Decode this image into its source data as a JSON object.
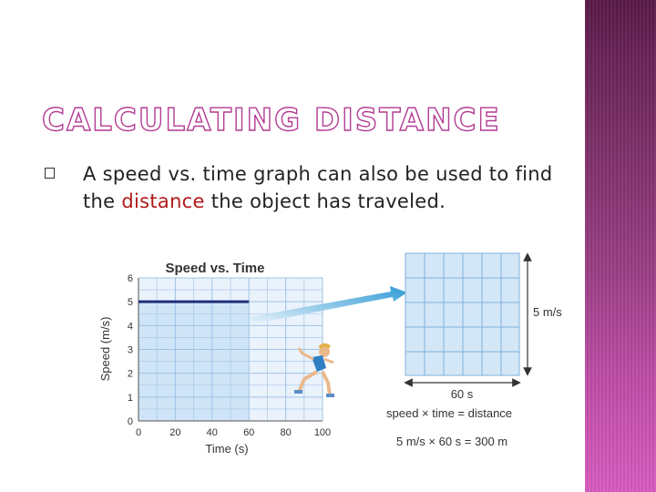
{
  "slide": {
    "title": "CALCULATING DISTANCE",
    "bullet": {
      "text_before": "A speed vs. time graph can also be used to find the",
      "highlight": "distance",
      "text_after": "the object has traveled."
    },
    "colors": {
      "title_outline": "#b23b93",
      "highlight": "#b21a1a",
      "band": "#7b2f67"
    }
  },
  "figure": {
    "chart_data": {
      "type": "line",
      "title": "Speed vs. Time",
      "xlabel": "Time (s)",
      "ylabel": "Speed (m/s)",
      "xlim": [
        0,
        100
      ],
      "ylim": [
        0,
        6
      ],
      "x_ticks": [
        "0",
        "20",
        "40",
        "60",
        "80",
        "100"
      ],
      "y_ticks": [
        "0",
        "1",
        "2",
        "3",
        "4",
        "5",
        "6"
      ],
      "series": [
        {
          "x": [
            0,
            60
          ],
          "y": [
            5,
            5
          ]
        }
      ],
      "shaded_region": {
        "x": [
          0,
          60
        ],
        "y": [
          0,
          5
        ]
      }
    },
    "callout": {
      "height_label": "5 m/s",
      "width_label": "60 s",
      "formula": "speed × time = distance",
      "calc": "5 m/s × 60 s = 300 m"
    }
  }
}
